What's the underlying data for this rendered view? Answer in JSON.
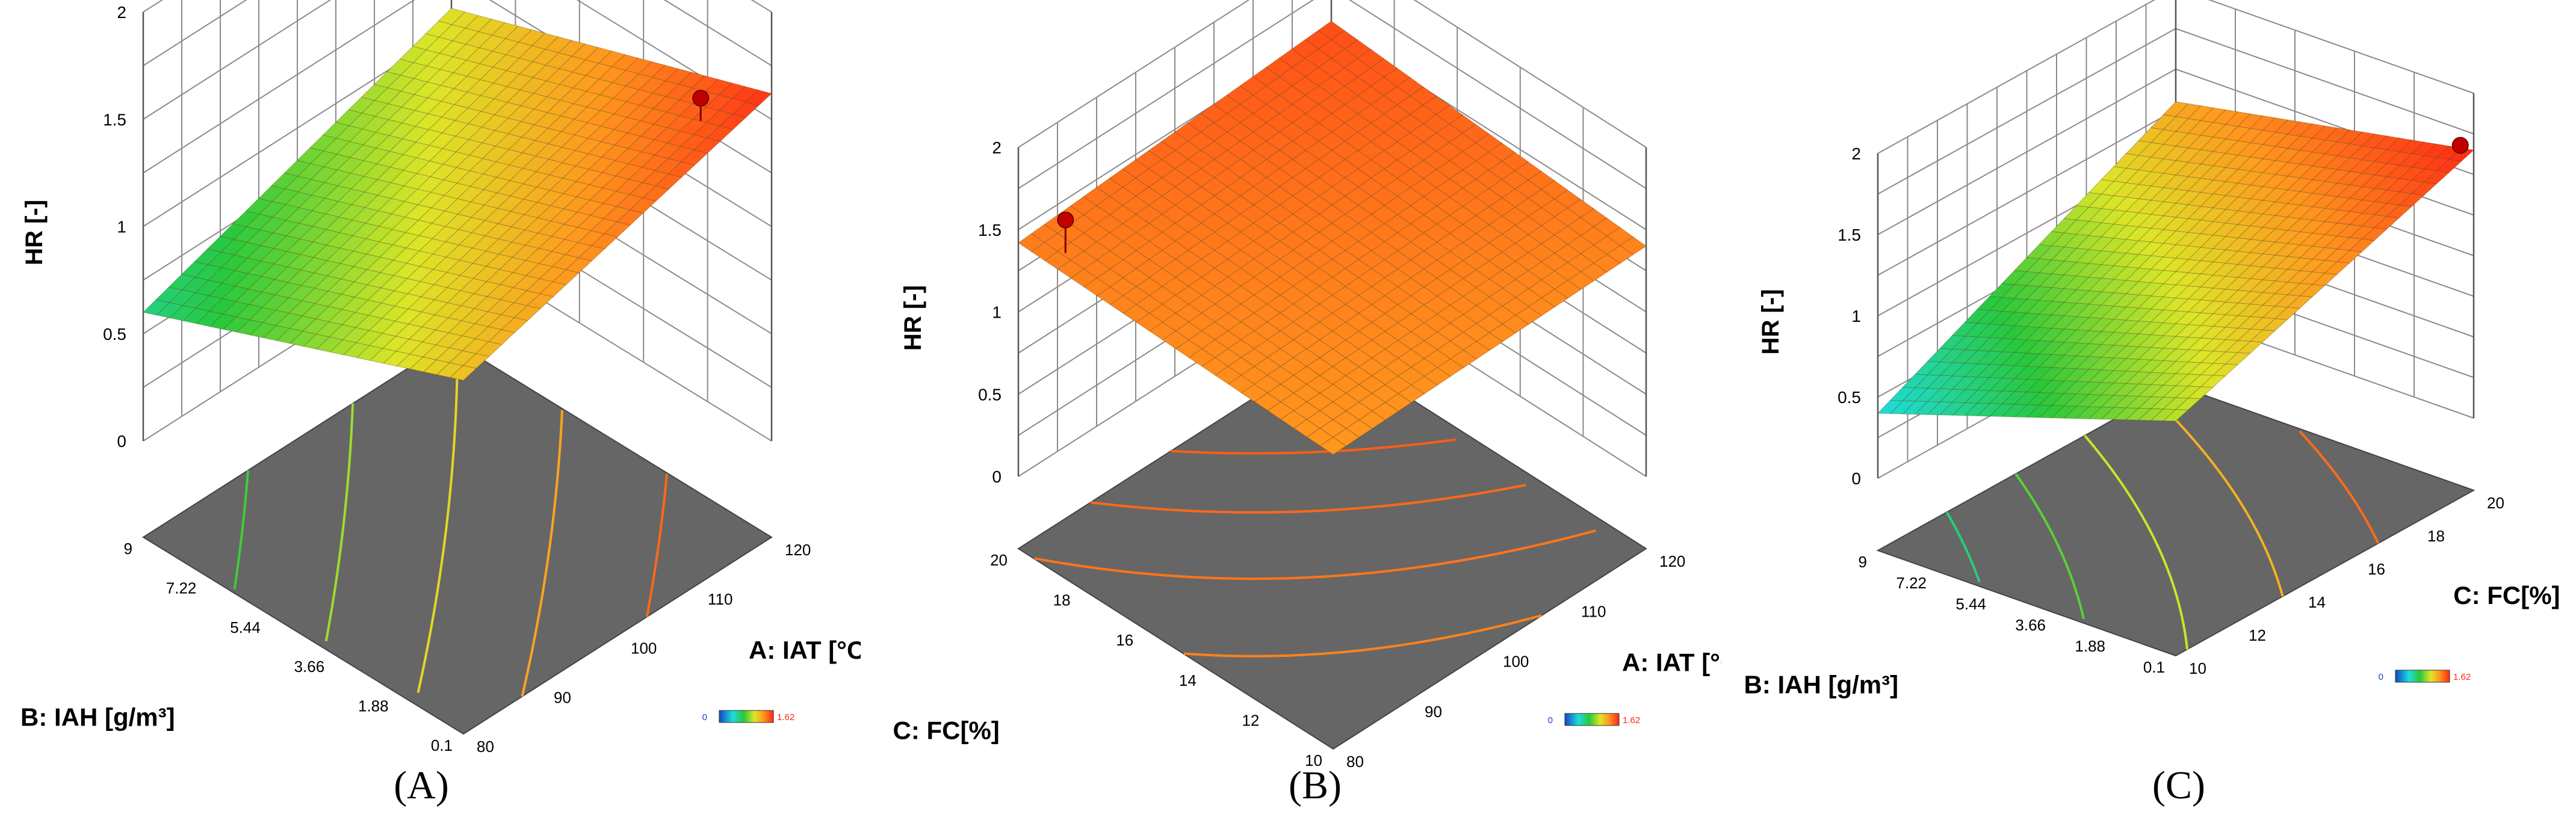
{
  "figure": {
    "captions": [
      "(A)",
      "(B)",
      "(C)"
    ]
  },
  "colors": {
    "floor": "#666666",
    "grid": "#8a8a8a",
    "low": "#1f3fbf",
    "mid": "#22b14c",
    "high": "#ff2a1a",
    "marker": "#c00000"
  },
  "chart_data": [
    {
      "type": "surface3d",
      "caption": "(A)",
      "zlabel": "HR [-]",
      "xlabel": "A: IAT [°C]",
      "ylabel": "B: IAH [g/m³]",
      "x_ticks": [
        "80",
        "90",
        "100",
        "110",
        "120"
      ],
      "y_ticks": [
        "0.1",
        "1.88",
        "3.66",
        "5.44",
        "7.22",
        "9"
      ],
      "z_ticks": [
        "0",
        "0.5",
        "1",
        "1.5",
        "2"
      ],
      "xlim": [
        80,
        120
      ],
      "ylim": [
        0.1,
        9
      ],
      "zlim": [
        0,
        2
      ],
      "surface_corners": {
        "x_min_y_min": 1.2,
        "x_max_y_min": 1.62,
        "x_min_y_max": 0.6,
        "x_max_y_max": 1.1
      },
      "design_point": {
        "x": 115,
        "y": 1.0,
        "z": 1.62
      },
      "legend": {
        "min": "0",
        "max": "1.62"
      }
    },
    {
      "type": "surface3d",
      "caption": "(B)",
      "zlabel": "HR [-]",
      "xlabel": "A: IAT [°C]",
      "ylabel": "C: FC[%]",
      "x_ticks": [
        "80",
        "90",
        "100",
        "110",
        "120"
      ],
      "y_ticks": [
        "10",
        "12",
        "14",
        "16",
        "18",
        "20"
      ],
      "z_ticks": [
        "0",
        "0.5",
        "1",
        "1.5",
        "2"
      ],
      "xlim": [
        80,
        120
      ],
      "ylim": [
        10,
        20
      ],
      "zlim": [
        0,
        2
      ],
      "surface_corners": {
        "x_min_y_min": 1.35,
        "x_max_y_min": 1.4,
        "x_min_y_max": 1.42,
        "x_max_y_max": 1.55
      },
      "design_point": {
        "x": 82,
        "y": 19,
        "z": 1.62
      },
      "legend": {
        "min": "0",
        "max": "1.62"
      }
    },
    {
      "type": "surface3d",
      "caption": "(C)",
      "zlabel": "HR [-]",
      "xlabel": "C: FC[%]",
      "ylabel": "B: IAH [g/m³]",
      "x_ticks": [
        "10",
        "12",
        "14",
        "16",
        "18",
        "20"
      ],
      "y_ticks": [
        "0.1",
        "1.88",
        "3.66",
        "5.44",
        "7.22",
        "9"
      ],
      "z_ticks": [
        "0",
        "0.5",
        "1",
        "1.5",
        "2"
      ],
      "xlim": [
        10,
        20
      ],
      "ylim": [
        0.1,
        9
      ],
      "zlim": [
        0,
        2
      ],
      "surface_corners": {
        "x_min_y_min": 1.0,
        "x_max_y_min": 1.65,
        "x_min_y_max": 0.4,
        "x_max_y_max": 1.3
      },
      "design_point": {
        "x": 20,
        "y": 0.5,
        "z": 1.65
      },
      "legend": {
        "min": "0",
        "max": "1.62"
      }
    }
  ]
}
